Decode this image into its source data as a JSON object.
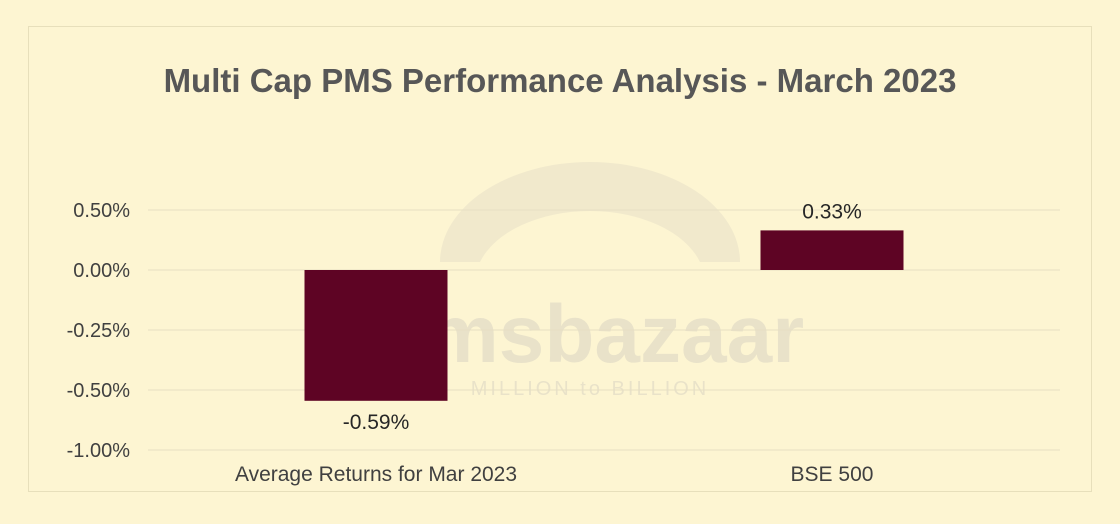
{
  "chart_data": {
    "type": "bar",
    "title": "Multi Cap PMS Performance Analysis - March 2023",
    "xlabel": "",
    "ylabel": "",
    "categories": [
      "Average Returns for Mar 2023",
      "BSE 500"
    ],
    "values": [
      -0.59,
      0.33
    ],
    "value_labels": [
      "-0.59%",
      "0.33%"
    ],
    "y_ticks": [
      {
        "value": 0.5,
        "label": "0.50%"
      },
      {
        "value": 0.0,
        "label": "0.00%"
      },
      {
        "value": -0.25,
        "label": "-0.25%"
      },
      {
        "value": -0.5,
        "label": "-0.50%"
      },
      {
        "value": -1.0,
        "label": "-1.00%"
      }
    ],
    "grid": true,
    "legend": "none",
    "colors": {
      "bar": "#5e0424",
      "background": "#fdf5d2",
      "grid": "#e6dfc3"
    }
  },
  "watermark": {
    "brand": "msbazaar",
    "tagline": "MILLION to BILLION"
  }
}
